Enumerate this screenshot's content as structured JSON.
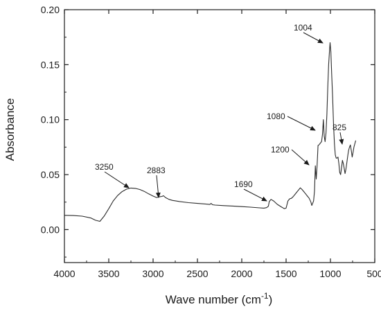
{
  "chart_data": {
    "type": "line",
    "xlabel": "Wave number (cm",
    "xlabel_sup": "-1",
    "xlabel_end": ")",
    "ylabel": "Absorbance",
    "xlim": [
      4000,
      500
    ],
    "ylim": [
      -0.03,
      0.2
    ],
    "x_reversed": true,
    "x_ticks": [
      {
        "value": 4000,
        "label": "4000"
      },
      {
        "value": 3500,
        "label": "3500"
      },
      {
        "value": 3000,
        "label": "3000"
      },
      {
        "value": 2500,
        "label": "2500"
      },
      {
        "value": 2000,
        "label": "2000"
      },
      {
        "value": 1500,
        "label": "1500"
      },
      {
        "value": 1000,
        "label": "1000"
      },
      {
        "value": 500,
        "label": "500"
      }
    ],
    "y_ticks": [
      {
        "value": 0.0,
        "label": "0.00"
      },
      {
        "value": 0.05,
        "label": "0.05"
      },
      {
        "value": 0.1,
        "label": "0.10"
      },
      {
        "value": 0.15,
        "label": "0.15"
      },
      {
        "value": 0.2,
        "label": "0.20"
      }
    ],
    "grid": false,
    "legend": "none",
    "line_color": "#2a2a2a",
    "series": [
      {
        "x": [
          4000,
          3900,
          3800,
          3700,
          3650,
          3600,
          3550,
          3500,
          3450,
          3400,
          3350,
          3300,
          3250,
          3200,
          3150,
          3100,
          3050,
          3000,
          2960,
          2930,
          2900,
          2883,
          2860,
          2820,
          2780,
          2700,
          2600,
          2500,
          2400,
          2360,
          2345,
          2330,
          2300,
          2200,
          2100,
          2000,
          1900,
          1800,
          1750,
          1720,
          1700,
          1690,
          1670,
          1640,
          1600,
          1560,
          1520,
          1500,
          1480,
          1460,
          1440,
          1420,
          1400,
          1380,
          1360,
          1340,
          1320,
          1300,
          1280,
          1260,
          1240,
          1220,
          1210,
          1200,
          1190,
          1180,
          1170,
          1160,
          1150,
          1140,
          1130,
          1120,
          1110,
          1100,
          1090,
          1080,
          1070,
          1060,
          1050,
          1040,
          1030,
          1020,
          1010,
          1004,
          995,
          985,
          975,
          965,
          955,
          945,
          935,
          925,
          915,
          905,
          895,
          885,
          875,
          865,
          855,
          845,
          835,
          825,
          815,
          805,
          795,
          785,
          775,
          765,
          755,
          745,
          735,
          725,
          715
        ],
        "y": [
          0.013,
          0.0128,
          0.0122,
          0.0105,
          0.0085,
          0.0075,
          0.0125,
          0.019,
          0.026,
          0.031,
          0.0345,
          0.0368,
          0.0378,
          0.0375,
          0.0365,
          0.0348,
          0.0325,
          0.0305,
          0.0292,
          0.0298,
          0.0302,
          0.0308,
          0.0292,
          0.0275,
          0.0265,
          0.0255,
          0.0245,
          0.0238,
          0.0232,
          0.0229,
          0.0238,
          0.0226,
          0.0223,
          0.0218,
          0.0214,
          0.0209,
          0.0204,
          0.0198,
          0.0195,
          0.02,
          0.0212,
          0.0255,
          0.0275,
          0.026,
          0.023,
          0.021,
          0.019,
          0.0195,
          0.026,
          0.028,
          0.0285,
          0.03,
          0.032,
          0.034,
          0.036,
          0.038,
          0.0365,
          0.0345,
          0.0325,
          0.0305,
          0.0285,
          0.025,
          0.022,
          0.024,
          0.026,
          0.035,
          0.058,
          0.046,
          0.059,
          0.0765,
          0.077,
          0.078,
          0.079,
          0.08,
          0.0865,
          0.1,
          0.085,
          0.08,
          0.088,
          0.105,
          0.13,
          0.15,
          0.163,
          0.17,
          0.162,
          0.14,
          0.12,
          0.095,
          0.078,
          0.068,
          0.065,
          0.065,
          0.066,
          0.06,
          0.052,
          0.05,
          0.056,
          0.063,
          0.06,
          0.056,
          0.051,
          0.055,
          0.061,
          0.067,
          0.072,
          0.075,
          0.077,
          0.072,
          0.066,
          0.07,
          0.075,
          0.078,
          0.081
        ]
      }
    ],
    "annotations": [
      {
        "label": "3250",
        "x": 3250,
        "y": 0.0378
      },
      {
        "label": "2883",
        "x": 2883,
        "y": 0.0308
      },
      {
        "label": "1690",
        "x": 1690,
        "y": 0.0255
      },
      {
        "label": "1200",
        "x": 1200,
        "y": 0.058
      },
      {
        "label": "1080",
        "x": 1080,
        "y": 0.1
      },
      {
        "label": "1004",
        "x": 1004,
        "y": 0.17
      },
      {
        "label": "825",
        "x": 825,
        "y": 0.067
      }
    ]
  }
}
